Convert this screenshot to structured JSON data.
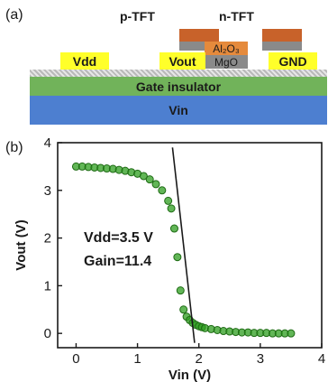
{
  "panel_a": {
    "letter": "(a)",
    "p_tft_label": "p-TFT",
    "n_tft_label": "n-TFT",
    "vdd_label": "Vdd",
    "vout_label": "Vout",
    "gnd_label": "GND",
    "al2o3_label": "Al₂O₃",
    "mgo_label": "MgO",
    "gate_insulator_label": "Gate insulator",
    "vin_label": "Vin",
    "colors": {
      "electrode_yellow": "#ffff2a",
      "top_contact_orange": "#c8622a",
      "al2o3_orange": "#e58a3c",
      "dielectric_gray": "#8a8a8a",
      "gate_insulator_green": "#71b35a",
      "substrate_blue": "#4d7fd0",
      "semiconductor_hatch": "#c9c9c9"
    }
  },
  "panel_b": {
    "letter": "(b)",
    "annotation_vdd": "Vdd=3.5 V",
    "annotation_gain": "Gain=11.4"
  },
  "chart_data": {
    "type": "scatter",
    "xlabel": "Vin (V)",
    "ylabel": "Vout (V)",
    "xlim": [
      -0.3,
      4
    ],
    "ylim": [
      -0.3,
      4
    ],
    "xticks": [
      0,
      1,
      2,
      3,
      4
    ],
    "yticks": [
      0,
      1,
      2,
      3,
      4
    ],
    "marker_color": "#2e9e1f",
    "series": [
      {
        "x": [
          0,
          0.1,
          0.2,
          0.3,
          0.4,
          0.5,
          0.6,
          0.7,
          0.8,
          0.9,
          1.0,
          1.1,
          1.2,
          1.3,
          1.4,
          1.5,
          1.55,
          1.6,
          1.65,
          1.7,
          1.75,
          1.8,
          1.85,
          1.9,
          1.95,
          2.0,
          2.05,
          2.1,
          2.2,
          2.3,
          2.4,
          2.5,
          2.6,
          2.7,
          2.8,
          2.9,
          3.0,
          3.1,
          3.2,
          3.3,
          3.4,
          3.5
        ],
        "y": [
          3.5,
          3.5,
          3.49,
          3.48,
          3.47,
          3.46,
          3.45,
          3.43,
          3.41,
          3.38,
          3.35,
          3.3,
          3.23,
          3.13,
          3.0,
          2.78,
          2.62,
          2.2,
          1.6,
          0.9,
          0.5,
          0.35,
          0.28,
          0.22,
          0.18,
          0.15,
          0.13,
          0.11,
          0.09,
          0.07,
          0.05,
          0.04,
          0.03,
          0.02,
          0.02,
          0.01,
          0.01,
          0.01,
          0.0,
          0.0,
          0.0,
          0.0
        ]
      }
    ],
    "fit_line": {
      "x": [
        1.57,
        1.93
      ],
      "y": [
        3.9,
        -0.2
      ]
    }
  }
}
